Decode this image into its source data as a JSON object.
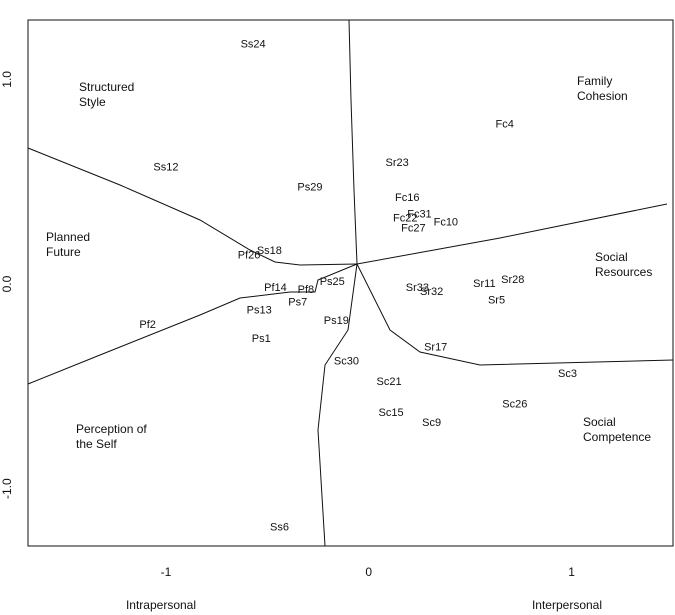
{
  "chart_data": {
    "type": "scatter",
    "x_labels": [
      "Intrapersonal",
      "Interpersonal"
    ],
    "regions": [
      [
        "Structured",
        "Style"
      ],
      [
        "Family",
        "Cohesion"
      ],
      [
        "Planned",
        "Future"
      ],
      [
        "Social",
        "Resources"
      ],
      [
        "Perception of",
        "the Self"
      ],
      [
        "Social",
        "Competence"
      ]
    ],
    "labels": [
      "Ss24",
      "Ss12",
      "Sr23",
      "Fc4",
      "Ps29",
      "Fc16",
      "Fc22",
      "Fc31",
      "Fc27",
      "Fc10",
      "Ss18",
      "Pf26",
      "Ps25",
      "Pf14",
      "Pf8",
      "Ps7",
      "Pf2",
      "Ps13",
      "Ps1",
      "Ps19",
      "Sr33",
      "Sr32",
      "Sr11",
      "Sr28",
      "Sr5",
      "Sr17",
      "Sc30",
      "Sc21",
      "Sc3",
      "Sc15",
      "Sc9",
      "Sc26",
      "Ss6"
    ],
    "x": [
      -0.57,
      -1.0,
      0.14,
      0.67,
      -0.29,
      0.19,
      0.18,
      0.25,
      0.22,
      0.38,
      -0.49,
      -0.59,
      -0.18,
      -0.46,
      -0.31,
      -0.35,
      -1.09,
      -0.54,
      -0.53,
      -0.16,
      0.24,
      0.31,
      0.57,
      0.71,
      0.63,
      0.33,
      -0.11,
      0.1,
      0.98,
      0.11,
      0.31,
      0.72,
      -0.44
    ],
    "y": [
      1.17,
      0.57,
      0.59,
      0.78,
      0.47,
      0.42,
      0.32,
      0.34,
      0.27,
      0.3,
      0.16,
      0.14,
      0.01,
      -0.02,
      -0.03,
      -0.09,
      -0.2,
      -0.13,
      -0.27,
      -0.18,
      -0.02,
      -0.04,
      0.0,
      0.02,
      -0.08,
      -0.31,
      -0.38,
      -0.48,
      -0.44,
      -0.63,
      -0.68,
      -0.59,
      -1.19
    ],
    "xlim": [
      -1.68,
      1.5
    ],
    "ylim": [
      -1.28,
      1.29
    ],
    "xticks": [
      -1,
      0,
      1
    ],
    "yticks": [
      {
        "value": -1,
        "label": "-1.0"
      },
      {
        "value": 0,
        "label": "0.0"
      },
      {
        "value": 1,
        "label": "1.0"
      }
    ]
  }
}
